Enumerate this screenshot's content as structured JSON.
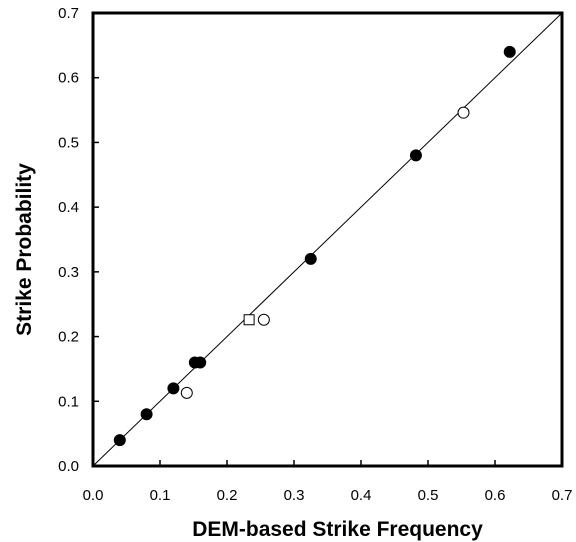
{
  "chart_data": {
    "type": "scatter",
    "title": "",
    "xlabel": "DEM-based Strike Frequency",
    "ylabel": "Strike Probability",
    "xlim": [
      0,
      0.7
    ],
    "ylim": [
      0,
      0.7
    ],
    "x_ticks": [
      "0.0",
      "0.1",
      "0.2",
      "0.3",
      "0.4",
      "0.5",
      "0.6",
      "0.7"
    ],
    "y_ticks": [
      "0.0",
      "0.1",
      "0.2",
      "0.3",
      "0.4",
      "0.5",
      "0.6",
      "0.7"
    ],
    "grid": false,
    "reference_line": {
      "type": "y=x",
      "from": [
        0,
        0
      ],
      "to": [
        0.7,
        0.7
      ]
    },
    "series": [
      {
        "marker": "filled-circle",
        "points": [
          {
            "x": 0.04,
            "y": 0.04
          },
          {
            "x": 0.08,
            "y": 0.08
          },
          {
            "x": 0.12,
            "y": 0.12
          },
          {
            "x": 0.152,
            "y": 0.16
          },
          {
            "x": 0.16,
            "y": 0.16
          },
          {
            "x": 0.325,
            "y": 0.32
          },
          {
            "x": 0.482,
            "y": 0.48
          },
          {
            "x": 0.622,
            "y": 0.64
          }
        ]
      },
      {
        "marker": "open-circle",
        "points": [
          {
            "x": 0.14,
            "y": 0.113
          },
          {
            "x": 0.255,
            "y": 0.226
          },
          {
            "x": 0.553,
            "y": 0.546
          }
        ]
      },
      {
        "marker": "open-square",
        "points": [
          {
            "x": 0.233,
            "y": 0.226
          }
        ]
      }
    ]
  }
}
